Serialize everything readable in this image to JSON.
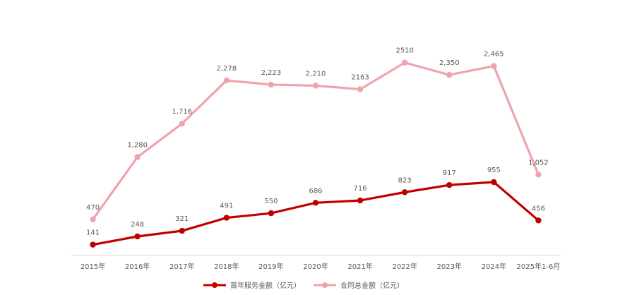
{
  "colors": {
    "series_1": "#C00000",
    "series_2": "#F0A3AD",
    "axis": "#D9D9D9",
    "label": "#595959"
  },
  "chart_data": {
    "type": "line",
    "title": "",
    "xlabel": "",
    "ylabel": "",
    "ylim": [
      0,
      2700
    ],
    "grid": false,
    "legend_position": "bottom",
    "categories": [
      "2015年",
      "2016年",
      "2017年",
      "2018年",
      "2019年",
      "2020年",
      "2021年",
      "2022年",
      "2023年",
      "2024年",
      "2025年1-6月"
    ],
    "series": [
      {
        "name": "首年服务金额（亿元）",
        "color": "#C00000",
        "values": [
          141,
          248,
          321,
          491,
          550,
          686,
          716,
          823,
          917,
          955,
          456
        ],
        "labels": [
          "141",
          "248",
          "321",
          "491",
          "550",
          "686",
          "716",
          "823",
          "917",
          "955",
          "456"
        ]
      },
      {
        "name": "合同总金额（亿元）",
        "color": "#F0A3AD",
        "values": [
          470,
          1280,
          1716,
          2278,
          2223,
          2210,
          2163,
          2510,
          2350,
          2465,
          1052
        ],
        "labels": [
          "470",
          "1,280",
          "1,716",
          "2,278",
          "2,223",
          "2,210",
          "2163",
          "2510",
          "2,350",
          "2,465",
          "1,052"
        ]
      }
    ]
  }
}
